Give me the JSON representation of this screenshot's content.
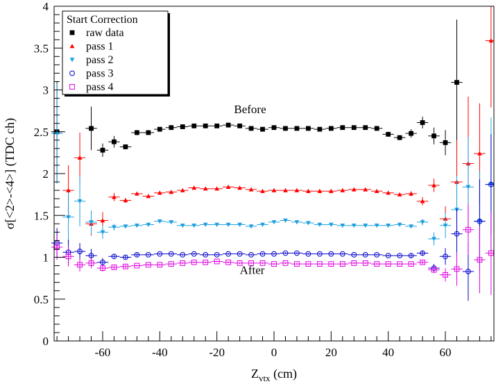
{
  "chart_data": {
    "type": "scatter",
    "title": "",
    "xlabel_main": "Z",
    "xlabel_sub": "vtx",
    "xlabel_unit": " (cm)",
    "ylabel": "σ[<2>-<4>]  (TDC ch)",
    "xlim": [
      -77,
      77
    ],
    "ylim": [
      0,
      4
    ],
    "x_ticks": [
      -60,
      -40,
      -20,
      0,
      20,
      40,
      60
    ],
    "y_ticks": [
      0,
      0.5,
      1,
      1.5,
      2,
      2.5,
      3,
      3.5,
      4
    ],
    "x_tick_labels": [
      "-60",
      "-40",
      "-20",
      "0",
      "20",
      "40",
      "60"
    ],
    "y_tick_labels": [
      "0",
      "0.5",
      "1",
      "1.5",
      "2",
      "2.5",
      "3",
      "3.5",
      "4"
    ],
    "grid": false,
    "legend": {
      "title": "Start Correction",
      "placement": "top-left"
    },
    "annotations": [
      {
        "text": "Before",
        "x": -14,
        "y": 2.72
      },
      {
        "text": "After",
        "x": -12,
        "y": 0.8
      }
    ],
    "series": [
      {
        "name": "raw data",
        "marker": "square-filled",
        "color": "#000000",
        "x": [
          -76,
          -72,
          -68,
          -64,
          -60,
          -56,
          -52,
          -48,
          -44,
          -40,
          -36,
          -32,
          -28,
          -24,
          -20,
          -16,
          -12,
          -8,
          -4,
          0,
          4,
          8,
          12,
          16,
          20,
          24,
          28,
          32,
          36,
          40,
          44,
          48,
          52,
          56,
          60,
          64,
          68,
          72,
          76
        ],
        "y": [
          2.5,
          null,
          null,
          2.54,
          2.28,
          2.38,
          2.32,
          2.49,
          2.49,
          2.53,
          2.55,
          2.56,
          2.57,
          2.57,
          2.57,
          2.58,
          2.57,
          2.54,
          2.53,
          2.55,
          2.54,
          2.54,
          2.54,
          2.53,
          2.54,
          2.55,
          2.55,
          2.55,
          2.54,
          2.47,
          2.43,
          2.48,
          2.61,
          2.45,
          2.37,
          3.09,
          null,
          null,
          null
        ],
        "err": [
          0.6,
          null,
          null,
          0.26,
          0.08,
          0.07,
          0.03,
          0.03,
          0.02,
          0.02,
          0.02,
          0.02,
          0.02,
          0.02,
          0.02,
          0.02,
          0.02,
          0.02,
          0.02,
          0.02,
          0.02,
          0.02,
          0.02,
          0.02,
          0.02,
          0.02,
          0.02,
          0.02,
          0.02,
          0.02,
          0.03,
          0.05,
          0.07,
          0.1,
          0.15,
          0.75,
          null,
          null,
          null
        ]
      },
      {
        "name": "pass 1",
        "marker": "triangle-up-filled",
        "color": "#ff0000",
        "x": [
          -76,
          -72,
          -68,
          -64,
          -60,
          -56,
          -52,
          -48,
          -44,
          -40,
          -36,
          -32,
          -28,
          -24,
          -20,
          -16,
          -12,
          -8,
          -4,
          0,
          4,
          8,
          12,
          16,
          20,
          24,
          28,
          32,
          36,
          40,
          44,
          48,
          52,
          56,
          60,
          64,
          68,
          72,
          76
        ],
        "y": [
          null,
          1.8,
          2.19,
          1.4,
          1.44,
          1.72,
          1.68,
          1.76,
          1.73,
          1.77,
          1.78,
          1.8,
          1.83,
          1.82,
          1.82,
          1.84,
          1.83,
          1.81,
          1.79,
          1.8,
          1.8,
          1.8,
          1.79,
          1.79,
          1.79,
          1.8,
          1.81,
          1.81,
          1.79,
          1.77,
          1.75,
          1.76,
          1.67,
          1.86,
          1.46,
          1.9,
          2.12,
          2.24,
          3.59
        ],
        "err": [
          null,
          0.3,
          0.3,
          0.14,
          0.1,
          0.05,
          0.03,
          0.02,
          0.02,
          0.02,
          0.02,
          0.02,
          0.02,
          0.02,
          0.02,
          0.02,
          0.02,
          0.02,
          0.02,
          0.02,
          0.02,
          0.02,
          0.02,
          0.02,
          0.02,
          0.02,
          0.02,
          0.02,
          0.02,
          0.02,
          0.02,
          0.03,
          0.05,
          0.08,
          0.15,
          0.5,
          0.8,
          0.6,
          0.8
        ]
      },
      {
        "name": "pass 2",
        "marker": "triangle-down-filled",
        "color": "#1e9fe0",
        "x": [
          -76,
          -72,
          -68,
          -64,
          -60,
          -56,
          -52,
          -48,
          -44,
          -40,
          -36,
          -32,
          -28,
          -24,
          -20,
          -16,
          -12,
          -8,
          -4,
          0,
          4,
          8,
          12,
          16,
          20,
          24,
          28,
          32,
          36,
          40,
          44,
          48,
          52,
          56,
          60,
          64,
          68,
          72,
          76
        ],
        "y": [
          2.48,
          1.48,
          1.67,
          1.42,
          1.3,
          1.36,
          1.37,
          1.38,
          1.39,
          1.43,
          1.42,
          1.38,
          1.38,
          1.39,
          1.39,
          1.39,
          1.39,
          1.37,
          1.39,
          1.42,
          1.44,
          1.42,
          1.41,
          1.39,
          1.39,
          1.38,
          1.38,
          1.38,
          1.38,
          1.38,
          1.39,
          1.37,
          1.42,
          1.22,
          1.38,
          1.57,
          1.84,
          1.43,
          1.87
        ],
        "err": [
          0.6,
          0.3,
          0.3,
          0.14,
          0.08,
          0.04,
          0.02,
          0.02,
          0.02,
          0.02,
          0.02,
          0.02,
          0.02,
          0.02,
          0.02,
          0.02,
          0.02,
          0.02,
          0.02,
          0.02,
          0.02,
          0.02,
          0.02,
          0.02,
          0.02,
          0.02,
          0.02,
          0.02,
          0.02,
          0.02,
          0.02,
          0.02,
          0.04,
          0.08,
          0.15,
          0.4,
          0.6,
          0.6,
          0.8
        ]
      },
      {
        "name": "pass 3",
        "marker": "circle-open",
        "color": "#0000cc",
        "x": [
          -76,
          -72,
          -68,
          -64,
          -60,
          -56,
          -52,
          -48,
          -44,
          -40,
          -36,
          -32,
          -28,
          -24,
          -20,
          -16,
          -12,
          -8,
          -4,
          0,
          4,
          8,
          12,
          16,
          20,
          24,
          28,
          32,
          36,
          40,
          44,
          48,
          52,
          56,
          60,
          64,
          68,
          72,
          76
        ],
        "y": [
          1.17,
          1.06,
          1.07,
          1.02,
          0.94,
          1.01,
          1.0,
          1.03,
          1.03,
          1.04,
          1.04,
          1.03,
          1.04,
          1.03,
          1.03,
          1.04,
          1.04,
          1.03,
          1.04,
          1.04,
          1.05,
          1.05,
          1.04,
          1.04,
          1.04,
          1.04,
          1.03,
          1.03,
          1.03,
          1.02,
          1.02,
          1.02,
          1.05,
          0.87,
          1.01,
          1.28,
          0.83,
          1.43,
          1.87
        ],
        "err": [
          0.18,
          0.15,
          0.1,
          0.08,
          0.05,
          0.02,
          0.02,
          0.02,
          0.01,
          0.01,
          0.01,
          0.01,
          0.01,
          0.01,
          0.01,
          0.01,
          0.01,
          0.01,
          0.01,
          0.01,
          0.01,
          0.01,
          0.01,
          0.01,
          0.01,
          0.01,
          0.01,
          0.01,
          0.01,
          0.01,
          0.01,
          0.02,
          0.03,
          0.05,
          0.1,
          0.3,
          0.35,
          0.5,
          0.6
        ]
      },
      {
        "name": "pass 4",
        "marker": "square-open",
        "color": "#e000e0",
        "x": [
          -76,
          -72,
          -68,
          -64,
          -60,
          -56,
          -52,
          -48,
          -44,
          -40,
          -36,
          -32,
          -28,
          -24,
          -20,
          -16,
          -12,
          -8,
          -4,
          0,
          4,
          8,
          12,
          16,
          20,
          24,
          28,
          32,
          36,
          40,
          44,
          48,
          52,
          56,
          60,
          64,
          68,
          72,
          76
        ],
        "y": [
          1.12,
          1.01,
          0.91,
          0.93,
          0.87,
          0.88,
          0.89,
          0.9,
          0.91,
          0.91,
          0.92,
          0.93,
          0.94,
          0.94,
          0.95,
          0.94,
          0.93,
          0.93,
          0.93,
          0.92,
          0.93,
          0.92,
          0.92,
          0.92,
          0.92,
          0.92,
          0.93,
          0.93,
          0.92,
          0.92,
          0.92,
          0.92,
          0.94,
          0.85,
          0.79,
          0.86,
          1.33,
          0.97,
          1.05
        ],
        "err": [
          0.15,
          0.12,
          0.08,
          0.06,
          0.04,
          0.02,
          0.02,
          0.01,
          0.01,
          0.01,
          0.01,
          0.01,
          0.01,
          0.01,
          0.01,
          0.01,
          0.01,
          0.01,
          0.01,
          0.01,
          0.01,
          0.01,
          0.01,
          0.01,
          0.01,
          0.01,
          0.01,
          0.01,
          0.01,
          0.01,
          0.01,
          0.01,
          0.02,
          0.04,
          0.08,
          0.2,
          0.3,
          0.4,
          0.5
        ]
      }
    ]
  }
}
